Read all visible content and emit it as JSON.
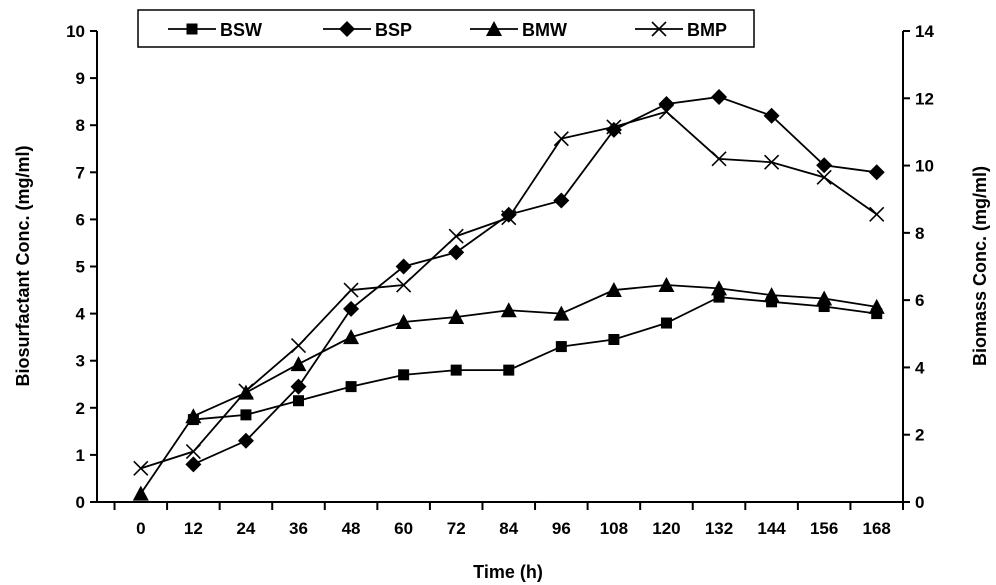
{
  "chart_data": {
    "type": "line",
    "xlabel": "Time (h)",
    "ylabel": "Biosurfactant Conc. (mg/ml)",
    "y2label": "Biomass Conc. (mg/ml)",
    "x_ticks": [
      "0",
      "12",
      "24",
      "36",
      "48",
      "60",
      "72",
      "84",
      "96",
      "108",
      "120",
      "132",
      "144",
      "156",
      "168"
    ],
    "y_ticks": [
      "0",
      "1",
      "2",
      "3",
      "4",
      "5",
      "6",
      "7",
      "8",
      "9",
      "10"
    ],
    "y2_ticks": [
      "0",
      "2",
      "4",
      "6",
      "8",
      "10",
      "12",
      "14"
    ],
    "xlim": [
      -10,
      174
    ],
    "ylim": [
      0,
      10
    ],
    "y2lim": [
      0,
      14
    ],
    "grid": false,
    "legend_position": "top-center",
    "series": [
      {
        "name": "BSW",
        "marker": "square",
        "axis": "left",
        "x": [
          12,
          24,
          36,
          48,
          60,
          72,
          84,
          96,
          108,
          120,
          132,
          144,
          156,
          168
        ],
        "y": [
          1.75,
          1.85,
          2.15,
          2.45,
          2.7,
          2.8,
          2.8,
          3.3,
          3.45,
          3.8,
          4.35,
          4.25,
          4.15,
          4.0
        ]
      },
      {
        "name": "BSP",
        "marker": "diamond",
        "axis": "left",
        "x": [
          12,
          24,
          36,
          48,
          60,
          72,
          84,
          96,
          108,
          120,
          132,
          144,
          156,
          168
        ],
        "y": [
          0.8,
          1.3,
          2.45,
          4.1,
          5.0,
          5.3,
          6.1,
          6.4,
          7.9,
          8.45,
          8.6,
          8.2,
          7.15,
          7.0
        ]
      },
      {
        "name": "BMW",
        "marker": "triangle",
        "axis": "right",
        "x": [
          0,
          12,
          24,
          36,
          48,
          60,
          72,
          84,
          96,
          108,
          120,
          132,
          144,
          156,
          168
        ],
        "y": [
          0.25,
          2.55,
          3.25,
          4.1,
          4.9,
          5.35,
          5.5,
          5.7,
          5.6,
          6.3,
          6.45,
          6.35,
          6.15,
          6.05,
          5.8
        ]
      },
      {
        "name": "BMP",
        "marker": "x",
        "axis": "right",
        "x": [
          0,
          12,
          24,
          36,
          48,
          60,
          72,
          84,
          96,
          108,
          120,
          132,
          144,
          156,
          168
        ],
        "y": [
          1.0,
          1.5,
          3.3,
          4.65,
          6.3,
          6.45,
          7.9,
          8.45,
          10.8,
          11.15,
          11.6,
          10.2,
          10.1,
          9.65,
          8.55
        ]
      }
    ]
  }
}
